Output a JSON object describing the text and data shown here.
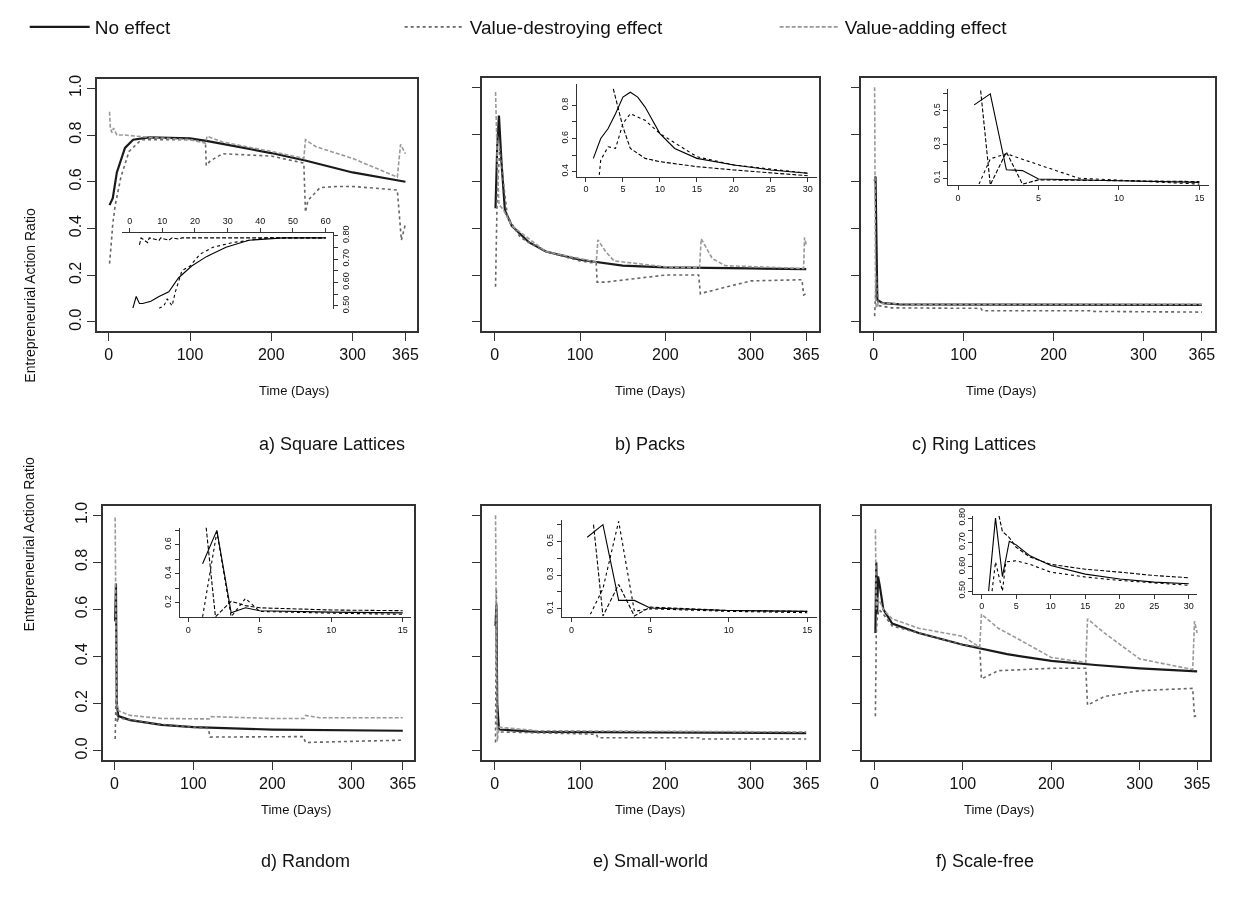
{
  "chart_data": [
    {
      "type": "line",
      "title": "a) Square Lattices",
      "xlabel": "Time (Days)",
      "ylabel": "Entrepreneurial Action Ratio",
      "legend": "top",
      "xlim": [
        -14.6,
        379.6
      ],
      "xticks": [
        0,
        100,
        200,
        300,
        365
      ],
      "ylim": [
        -0.04,
        1.04
      ],
      "yticks": [
        {
          "value": 0,
          "label": "0.0"
        },
        0.2,
        0.4,
        0.6,
        0.8,
        {
          "value": 1,
          "label": "1.0"
        }
      ],
      "series": [
        {
          "name": "No effect",
          "color": "#1a1a1a",
          "line_style": "solid",
          "x": [
            1,
            5,
            10,
            20,
            30,
            50,
            100,
            120,
            200,
            243,
            300,
            365
          ],
          "values": [
            0.5,
            0.53,
            0.64,
            0.745,
            0.78,
            0.79,
            0.786,
            0.775,
            0.723,
            0.69,
            0.64,
            0.6
          ]
        },
        {
          "name": "Value-destroying effect",
          "color": "#666666",
          "line_style": "dotted",
          "x": [
            1,
            3,
            5,
            8,
            15,
            25,
            40,
            100,
            119,
            120,
            125,
            140,
            200,
            240,
            242,
            245,
            260,
            280,
            300,
            355,
            360,
            365
          ],
          "values": [
            0.25,
            0.33,
            0.42,
            0.5,
            0.62,
            0.73,
            0.78,
            0.78,
            0.77,
            0.67,
            0.69,
            0.72,
            0.71,
            0.68,
            0.47,
            0.52,
            0.575,
            0.58,
            0.58,
            0.565,
            0.35,
            0.42
          ]
        },
        {
          "name": "Value-adding effect",
          "color": "#999999",
          "line_style": "dashed",
          "x": [
            1,
            2,
            4,
            6,
            10,
            20,
            50,
            100,
            119,
            121,
            140,
            200,
            240,
            242,
            255,
            300,
            355,
            359,
            365
          ],
          "values": [
            0.9,
            0.83,
            0.81,
            0.83,
            0.8,
            0.8,
            0.79,
            0.78,
            0.765,
            0.795,
            0.77,
            0.73,
            0.7,
            0.78,
            0.75,
            0.7,
            0.62,
            0.76,
            0.72
          ]
        }
      ]
    },
    {
      "type": "line",
      "xlim": [
        -2.4,
        62.4
      ],
      "xticks": [
        0,
        10,
        20,
        30,
        40,
        50,
        60
      ],
      "ylim": [
        0.488,
        0.812
      ],
      "yticks": [
        {
          "value": 0.5,
          "label": "0.50"
        },
        {
          "value": 0.55,
          "label": null
        },
        {
          "value": 0.6,
          "label": "0.60"
        },
        {
          "value": 0.65,
          "label": null
        },
        {
          "value": 0.7,
          "label": "0.70"
        },
        {
          "value": 0.75,
          "label": null
        },
        {
          "value": 0.8,
          "label": "0.80"
        }
      ],
      "series": [
        {
          "color": "#000000",
          "line_style": "solid",
          "x": [
            1,
            2,
            3,
            4,
            6.5,
            9,
            12,
            15,
            19,
            23.5,
            29.5,
            36.5,
            47,
            60
          ],
          "values": [
            0.49,
            0.54,
            0.51,
            0.51,
            0.52,
            0.54,
            0.56,
            0.62,
            0.67,
            0.71,
            0.75,
            0.78,
            0.79,
            0.79
          ]
        },
        {
          "color": "#000000",
          "line_style": "dotted",
          "x": [
            9,
            10.5,
            11.5,
            13,
            14,
            16,
            18.5,
            21.5,
            25.5,
            31.5,
            42,
            60
          ],
          "values": [
            0.49,
            0.5,
            0.53,
            0.5,
            0.56,
            0.65,
            0.67,
            0.72,
            0.75,
            0.77,
            0.79,
            0.79
          ]
        },
        {
          "color": "#000000",
          "line_style": "dashed",
          "x": [
            3,
            3.5,
            5.5,
            6,
            9,
            9.5,
            12,
            13,
            15,
            16,
            20,
            30,
            60
          ],
          "values": [
            0.76,
            0.79,
            0.77,
            0.79,
            0.78,
            0.79,
            0.78,
            0.79,
            0.785,
            0.79,
            0.79,
            0.79,
            0.79
          ]
        }
      ]
    },
    {
      "type": "line",
      "title": "b) Packs",
      "xlabel": "Time (Days)",
      "tick_labels": "x",
      "xlim": [
        -14.6,
        379.6
      ],
      "xticks": [
        0,
        100,
        200,
        300,
        365
      ],
      "ylim": [
        -0.04,
        1.04
      ],
      "yticks": [
        0,
        0.2,
        0.4,
        0.6,
        0.8,
        1
      ],
      "series": [
        {
          "color": "#1a1a1a",
          "line_style": "solid",
          "x": [
            1,
            3,
            5,
            8,
            12,
            20,
            40,
            60,
            100,
            150,
            200,
            300,
            365
          ],
          "values": [
            0.485,
            0.75,
            0.88,
            0.68,
            0.475,
            0.41,
            0.34,
            0.3,
            0.265,
            0.24,
            0.233,
            0.228,
            0.225
          ]
        },
        {
          "color": "#666666",
          "line_style": "dotted",
          "x": [
            1,
            3,
            6,
            10,
            15,
            30,
            60,
            100,
            119,
            120,
            130,
            200,
            239,
            241,
            245,
            300,
            360,
            362,
            365
          ],
          "values": [
            0.15,
            0.55,
            0.74,
            0.6,
            0.45,
            0.36,
            0.3,
            0.26,
            0.25,
            0.17,
            0.17,
            0.2,
            0.2,
            0.12,
            0.125,
            0.175,
            0.18,
            0.115,
            0.12
          ]
        },
        {
          "color": "#999999",
          "line_style": "dashed",
          "x": [
            1,
            3,
            5,
            10,
            20,
            60,
            100,
            119,
            121,
            130,
            140,
            200,
            240,
            242,
            255,
            270,
            362,
            363,
            365
          ],
          "values": [
            0.98,
            0.7,
            0.5,
            0.48,
            0.41,
            0.3,
            0.27,
            0.255,
            0.35,
            0.3,
            0.26,
            0.235,
            0.23,
            0.355,
            0.27,
            0.24,
            0.228,
            0.36,
            0.33
          ]
        }
      ]
    },
    {
      "type": "line",
      "xlim": [
        -1.2,
        31.2
      ],
      "xticks": [
        0,
        5,
        10,
        15,
        20,
        25,
        30
      ],
      "ylim": [
        0.37,
        0.93
      ],
      "yticks": [
        0.4,
        {
          "value": 0.5,
          "label": null
        },
        0.6,
        {
          "value": 0.7,
          "label": null
        },
        0.8
      ],
      "series": [
        {
          "color": "#000000",
          "line_style": "solid",
          "x": [
            1,
            2,
            3,
            4,
            5,
            6,
            7,
            8,
            10,
            12,
            15,
            20,
            25,
            30
          ],
          "values": [
            0.48,
            0.6,
            0.66,
            0.75,
            0.85,
            0.88,
            0.85,
            0.79,
            0.63,
            0.54,
            0.48,
            0.44,
            0.41,
            0.39
          ]
        },
        {
          "color": "#000000",
          "line_style": "dotted",
          "x": [
            1.8,
            2,
            3,
            4,
            5,
            6,
            8,
            10,
            15,
            20,
            30
          ],
          "values": [
            0.38,
            0.47,
            0.55,
            0.54,
            0.69,
            0.75,
            0.71,
            0.63,
            0.49,
            0.44,
            0.39
          ]
        },
        {
          "color": "#000000",
          "line_style": "dashed",
          "x": [
            3.7,
            5,
            6,
            8,
            10,
            15,
            20,
            30
          ],
          "values": [
            0.9,
            0.67,
            0.54,
            0.48,
            0.46,
            0.43,
            0.41,
            0.375
          ]
        }
      ]
    },
    {
      "type": "line",
      "title": "c) Ring Lattices",
      "xlabel": "Time (Days)",
      "tick_labels": "x",
      "xlim": [
        -14.6,
        379.6
      ],
      "xticks": [
        0,
        100,
        200,
        300,
        365
      ],
      "ylim": [
        -0.04,
        1.04
      ],
      "yticks": [
        0,
        0.2,
        0.4,
        0.6,
        0.8,
        1
      ],
      "series": [
        {
          "color": "#1a1a1a",
          "line_style": "solid",
          "x": [
            1,
            2,
            4,
            10,
            30,
            365
          ],
          "values": [
            0.6,
            0.62,
            0.094,
            0.08,
            0.075,
            0.073
          ]
        },
        {
          "color": "#666666",
          "line_style": "dotted",
          "x": [
            1,
            3,
            5,
            20,
            119,
            121,
            240,
            243,
            365
          ],
          "values": [
            0.025,
            0.2,
            0.07,
            0.06,
            0.058,
            0.048,
            0.048,
            0.045,
            0.042
          ]
        },
        {
          "color": "#999999",
          "line_style": "dashed",
          "x": [
            1,
            2,
            3,
            5,
            50,
            365
          ],
          "values": [
            1.0,
            0.1,
            0.06,
            0.08,
            0.075,
            0.075
          ]
        }
      ]
    },
    {
      "type": "line",
      "xlim": [
        -0.6,
        15.6
      ],
      "xticks": [
        0,
        5,
        10,
        15
      ],
      "ylim": [
        0.057,
        0.63
      ],
      "yticks": [
        0.1,
        {
          "value": 0.2,
          "label": null
        },
        0.3,
        {
          "value": 0.4,
          "label": null
        },
        0.5,
        {
          "value": 0.6,
          "label": null
        }
      ],
      "series": [
        {
          "color": "#000000",
          "line_style": "solid",
          "x": [
            1,
            2,
            3,
            4,
            5,
            10,
            15
          ],
          "values": [
            0.535,
            0.6,
            0.15,
            0.145,
            0.095,
            0.085,
            0.075
          ]
        },
        {
          "color": "#000000",
          "line_style": "dotted",
          "x": [
            1.3,
            2,
            3,
            5,
            7.5,
            15
          ],
          "values": [
            0.065,
            0.215,
            0.245,
            0.18,
            0.1,
            0.065
          ]
        },
        {
          "color": "#000000",
          "line_style": "dashed",
          "x": [
            1.4,
            2,
            3,
            4,
            5,
            15
          ],
          "values": [
            0.62,
            0.06,
            0.255,
            0.065,
            0.09,
            0.08
          ]
        }
      ]
    },
    {
      "type": "line",
      "title": "d) Random",
      "xlabel": "Time (Days)",
      "ylabel": "Entrepreneurial Action Ratio",
      "xlim": [
        -14.6,
        379.6
      ],
      "xticks": [
        0,
        100,
        200,
        300,
        365
      ],
      "ylim": [
        -0.04,
        1.04
      ],
      "yticks": [
        {
          "value": 0,
          "label": "0.0"
        },
        0.2,
        0.4,
        0.6,
        0.8,
        {
          "value": 1,
          "label": "1.0"
        }
      ],
      "series": [
        {
          "color": "#1a1a1a",
          "line_style": "solid",
          "x": [
            1,
            2,
            3,
            5,
            20,
            60,
            100,
            200,
            365
          ],
          "values": [
            0.55,
            0.71,
            0.2,
            0.147,
            0.13,
            0.11,
            0.1,
            0.09,
            0.085
          ]
        },
        {
          "color": "#666666",
          "line_style": "dotted",
          "x": [
            1,
            2,
            4,
            5,
            50,
            100,
            119,
            121,
            239,
            242,
            365
          ],
          "values": [
            0.05,
            0.22,
            0.12,
            0.14,
            0.115,
            0.1,
            0.095,
            0.058,
            0.06,
            0.035,
            0.045
          ]
        },
        {
          "color": "#999999",
          "line_style": "dashed",
          "x": [
            1,
            2,
            3,
            5,
            20,
            60,
            120,
            122,
            200,
            240,
            242,
            260,
            365
          ],
          "values": [
            0.99,
            0.5,
            0.2,
            0.17,
            0.15,
            0.137,
            0.135,
            0.145,
            0.137,
            0.137,
            0.15,
            0.14,
            0.14
          ]
        }
      ]
    },
    {
      "type": "line",
      "xlim": [
        -0.6,
        15.6
      ],
      "xticks": [
        0,
        5,
        10,
        15
      ],
      "ylim": [
        0.1,
        0.72
      ],
      "yticks": [
        0.2,
        {
          "value": 0.3,
          "label": null
        },
        0.4,
        {
          "value": 0.5,
          "label": null
        },
        0.6,
        {
          "value": 0.7,
          "label": null
        }
      ],
      "series": [
        {
          "color": "#000000",
          "line_style": "solid",
          "x": [
            1,
            2,
            3,
            4,
            5,
            10,
            15
          ],
          "values": [
            0.47,
            0.7,
            0.13,
            0.165,
            0.145,
            0.135,
            0.13
          ]
        },
        {
          "color": "#000000",
          "line_style": "dotted",
          "x": [
            1,
            2,
            3,
            4,
            5,
            10,
            15
          ],
          "values": [
            0.103,
            0.69,
            0.103,
            0.23,
            0.14,
            0.128,
            0.12
          ]
        },
        {
          "color": "#000000",
          "line_style": "dashed",
          "x": [
            1.25,
            1.9,
            3,
            4,
            5,
            10,
            15
          ],
          "values": [
            0.72,
            0.103,
            0.21,
            0.18,
            0.165,
            0.15,
            0.145
          ]
        }
      ]
    },
    {
      "type": "line",
      "title": "e) Small-world",
      "xlabel": "Time (Days)",
      "tick_labels": "x",
      "xlim": [
        -14.6,
        379.6
      ],
      "xticks": [
        0,
        100,
        200,
        300,
        365
      ],
      "ylim": [
        -0.04,
        1.04
      ],
      "yticks": [
        0,
        0.2,
        0.4,
        0.6,
        0.8,
        1
      ],
      "series": [
        {
          "color": "#1a1a1a",
          "line_style": "solid",
          "x": [
            1,
            2,
            3,
            5,
            50,
            365
          ],
          "values": [
            0.53,
            0.62,
            0.2,
            0.09,
            0.08,
            0.075
          ]
        },
        {
          "color": "#666666",
          "line_style": "dotted",
          "x": [
            1,
            2,
            3,
            5,
            100,
            119,
            121,
            239,
            241,
            365
          ],
          "values": [
            0.035,
            0.69,
            0.1,
            0.08,
            0.072,
            0.07,
            0.055,
            0.055,
            0.05,
            0.05
          ]
        },
        {
          "color": "#999999",
          "line_style": "dashed",
          "x": [
            1,
            2,
            3,
            5,
            50,
            365
          ],
          "values": [
            1.0,
            0.5,
            0.04,
            0.1,
            0.085,
            0.08
          ]
        }
      ]
    },
    {
      "type": "line",
      "xlim": [
        -0.6,
        15.6
      ],
      "xticks": [
        0,
        5,
        10,
        15
      ],
      "ylim": [
        0.05,
        0.63
      ],
      "yticks": [
        0.1,
        {
          "value": 0.2,
          "label": null
        },
        0.3,
        {
          "value": 0.4,
          "label": null
        },
        0.5,
        {
          "value": 0.6,
          "label": null
        }
      ],
      "series": [
        {
          "color": "#000000",
          "line_style": "solid",
          "x": [
            1,
            2,
            3,
            4,
            5,
            10,
            15
          ],
          "values": [
            0.525,
            0.6,
            0.15,
            0.15,
            0.105,
            0.09,
            0.085
          ]
        },
        {
          "color": "#000000",
          "line_style": "dotted",
          "x": [
            1.2,
            2,
            3,
            4,
            5,
            10,
            15
          ],
          "values": [
            0.067,
            0.22,
            0.62,
            0.085,
            0.1,
            0.085,
            0.077
          ]
        },
        {
          "color": "#000000",
          "line_style": "dashed",
          "x": [
            1.4,
            2,
            3,
            4,
            5,
            10,
            15
          ],
          "values": [
            0.6,
            0.057,
            0.245,
            0.057,
            0.11,
            0.09,
            0.085
          ]
        }
      ]
    },
    {
      "type": "line",
      "title": "f) Scale-free",
      "xlabel": "Time (Days)",
      "tick_labels": "x",
      "xlim": [
        -14.6,
        379.6
      ],
      "xticks": [
        0,
        100,
        200,
        300,
        365
      ],
      "ylim": [
        -0.04,
        1.04
      ],
      "yticks": [
        0,
        0.2,
        0.4,
        0.6,
        0.8,
        1
      ],
      "series": [
        {
          "color": "#1a1a1a",
          "line_style": "solid",
          "x": [
            1,
            2,
            3,
            4,
            6,
            10,
            20,
            50,
            100,
            150,
            200,
            250,
            300,
            365
          ],
          "values": [
            0.5,
            0.8,
            0.58,
            0.74,
            0.7,
            0.6,
            0.54,
            0.5,
            0.45,
            0.41,
            0.382,
            0.364,
            0.35,
            0.337
          ]
        },
        {
          "color": "#666666",
          "line_style": "dotted",
          "x": [
            1,
            2,
            3,
            5,
            10,
            20,
            50,
            100,
            119,
            121,
            140,
            200,
            239,
            241,
            260,
            300,
            360,
            362,
            365
          ],
          "values": [
            0.146,
            0.5,
            0.56,
            0.6,
            0.58,
            0.53,
            0.5,
            0.45,
            0.44,
            0.305,
            0.34,
            0.35,
            0.35,
            0.194,
            0.23,
            0.255,
            0.265,
            0.146,
            0.15
          ]
        },
        {
          "color": "#999999",
          "line_style": "dashed",
          "x": [
            1,
            2,
            4,
            10,
            20,
            50,
            100,
            119,
            121,
            140,
            160,
            200,
            239,
            241,
            260,
            300,
            360,
            362,
            365
          ],
          "values": [
            0.94,
            0.6,
            0.65,
            0.6,
            0.56,
            0.52,
            0.486,
            0.44,
            0.58,
            0.52,
            0.48,
            0.396,
            0.375,
            0.56,
            0.5,
            0.39,
            0.345,
            0.55,
            0.5
          ]
        }
      ]
    },
    {
      "type": "line",
      "xlim": [
        -1.2,
        31.2
      ],
      "xticks": [
        0,
        5,
        10,
        15,
        20,
        25,
        30
      ],
      "ylim": [
        0.49,
        0.81
      ],
      "yticks": [
        {
          "value": 0.5,
          "label": "0.50"
        },
        {
          "value": 0.55,
          "label": null
        },
        {
          "value": 0.6,
          "label": "0.60"
        },
        {
          "value": 0.65,
          "label": null
        },
        {
          "value": 0.7,
          "label": "0.70"
        },
        {
          "value": 0.75,
          "label": null
        },
        {
          "value": 0.8,
          "label": "0.80"
        }
      ],
      "series": [
        {
          "color": "#000000",
          "line_style": "solid",
          "x": [
            1,
            2,
            3,
            4,
            5,
            7,
            10,
            15,
            20,
            25,
            30
          ],
          "values": [
            0.5,
            0.8,
            0.56,
            0.705,
            0.69,
            0.645,
            0.605,
            0.57,
            0.55,
            0.537,
            0.53
          ]
        },
        {
          "color": "#000000",
          "line_style": "dotted",
          "x": [
            1.5,
            2,
            3,
            3.5,
            5,
            7,
            10,
            15,
            20,
            30
          ],
          "values": [
            0.5,
            0.62,
            0.5,
            0.62,
            0.625,
            0.61,
            0.578,
            0.558,
            0.544,
            0.524
          ]
        },
        {
          "color": "#000000",
          "line_style": "dashed",
          "x": [
            2.5,
            3,
            4,
            5,
            7,
            10,
            15,
            20,
            25,
            30
          ],
          "values": [
            0.81,
            0.745,
            0.72,
            0.68,
            0.64,
            0.61,
            0.59,
            0.578,
            0.564,
            0.555
          ]
        }
      ]
    }
  ]
}
